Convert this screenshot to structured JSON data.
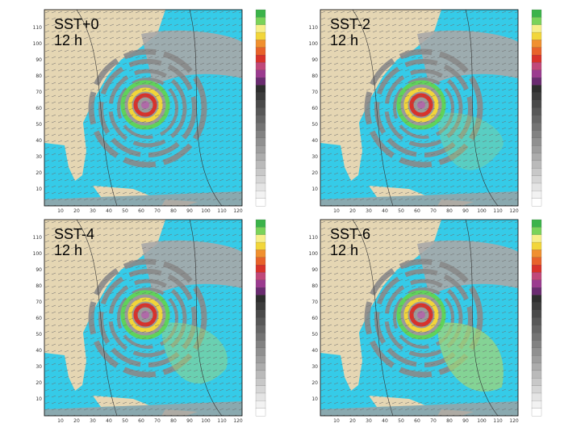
{
  "panels": [
    {
      "label": "SST+0",
      "time": "12 h"
    },
    {
      "label": "SST-2",
      "time": "12 h"
    },
    {
      "label": "SST-4",
      "time": "12 h"
    },
    {
      "label": "SST-6",
      "time": "12 h"
    }
  ],
  "y_axis_labels": [
    "110",
    "100",
    "90",
    "80",
    "70",
    "60",
    "50",
    "40",
    "30",
    "20",
    "10"
  ],
  "x_axis_labels": [
    "10",
    "20",
    "30",
    "40",
    "50",
    "60",
    "70",
    "80",
    "90",
    "100",
    "110",
    "120"
  ]
}
